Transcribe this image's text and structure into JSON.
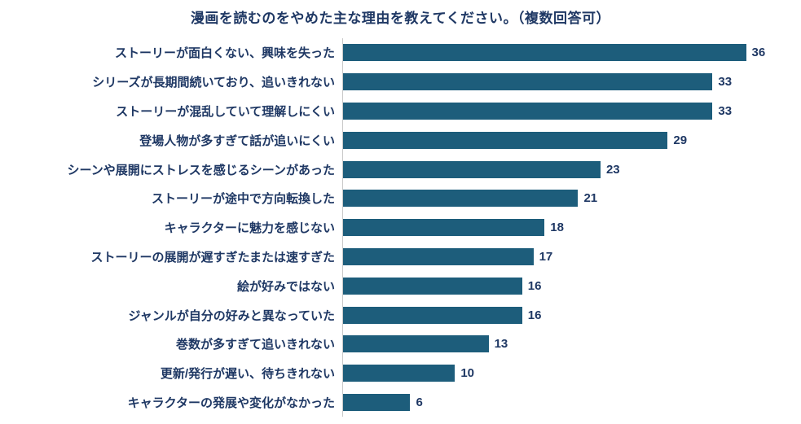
{
  "chart": {
    "title": "漫画を読むのをやめた主な理由を教えてください。（複数回答可）"
  },
  "chart_data": {
    "type": "bar",
    "orientation": "horizontal",
    "title": "漫画を読むのをやめた主な理由を教えてください。（複数回答可）",
    "categories": [
      "ストーリーが面白くない、興味を失った",
      "シリーズが長期間続いており、追いきれない",
      "ストーリーが混乱していて理解しにくい",
      "登場人物が多すぎて話が追いにくい",
      "シーンや展開にストレスを感じるシーンがあった",
      "ストーリーが途中で方向転換した",
      "キャラクターに魅力を感じない",
      "ストーリーの展開が遅すぎたまたは速すぎた",
      "絵が好みではない",
      "ジャンルが自分の好みと異なっていた",
      "巻数が多すぎて追いきれない",
      "更新/発行が遅い、待ちきれない",
      "キャラクターの発展や変化がなかった"
    ],
    "values": [
      36,
      33,
      33,
      29,
      23,
      21,
      18,
      17,
      16,
      16,
      13,
      10,
      6
    ],
    "xlim": [
      0,
      40
    ],
    "value_labels": true,
    "grid": false,
    "legend": false,
    "bar_color": "#1d5d7b",
    "text_color": "#1f3864",
    "axis_line_color": "#c9c9c9"
  }
}
